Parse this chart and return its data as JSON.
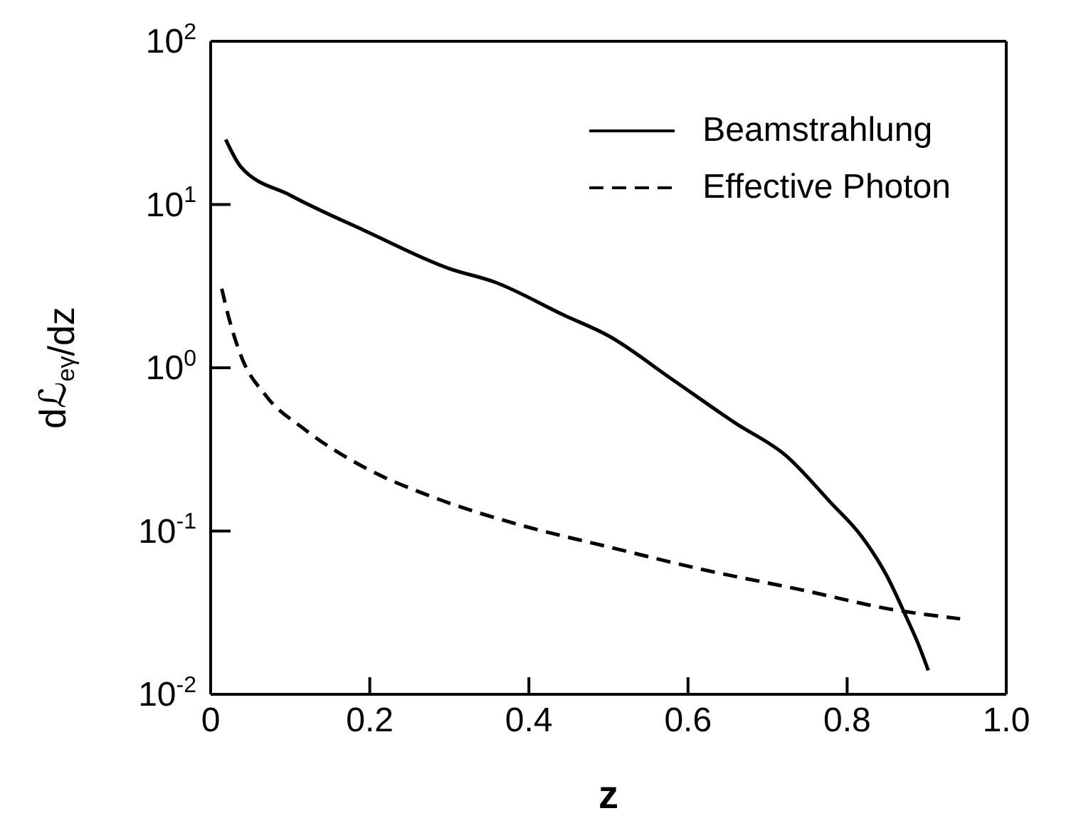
{
  "chart_data": {
    "type": "line",
    "xlabel": "z",
    "ylabel": "dℒ$_{eγ}$/dz",
    "log": "y",
    "grid": false,
    "legend": "top right",
    "marker": "none",
    "xlim": [
      0,
      1
    ],
    "xticks": [
      0,
      0.2,
      0.4,
      0.6,
      0.8,
      {
        "value": 1,
        "label": "1.0"
      }
    ],
    "ylim": [
      0.01,
      100
    ],
    "yticks": [
      {
        "value": 0.01,
        "label": "10$^{-2}$"
      },
      {
        "value": 0.1,
        "label": "10$^{-1}$"
      },
      {
        "value": 1,
        "label": "10$^{0}$"
      },
      {
        "value": 10,
        "label": "10$^{1}$"
      },
      {
        "value": 100,
        "label": "10$^{2}$"
      }
    ],
    "series": [
      {
        "name": "Beamstrahlung",
        "color": "#000000",
        "line_style": "solid",
        "x": [
          0.019,
          0.038,
          0.1,
          0.197,
          0.3,
          0.357,
          0.444,
          0.5,
          0.58,
          0.659,
          0.723,
          0.779,
          0.818,
          0.85,
          0.874,
          0.89,
          0.902
        ],
        "values": [
          25,
          17,
          11.4,
          6.8,
          4.05,
          3.35,
          2.1,
          1.57,
          0.85,
          0.46,
          0.29,
          0.15,
          0.093,
          0.053,
          0.03,
          0.02,
          0.014
        ]
      },
      {
        "name": "Effective Photon",
        "color": "#000000",
        "line_style": "dashed",
        "x": [
          0.014,
          0.022,
          0.038,
          0.07,
          0.118,
          0.197,
          0.277,
          0.38,
          0.5,
          0.619,
          0.739,
          0.858,
          0.942
        ],
        "values": [
          3.05,
          2.1,
          1.19,
          0.67,
          0.42,
          0.24,
          0.163,
          0.112,
          0.08,
          0.058,
          0.044,
          0.033,
          0.029
        ]
      }
    ]
  }
}
